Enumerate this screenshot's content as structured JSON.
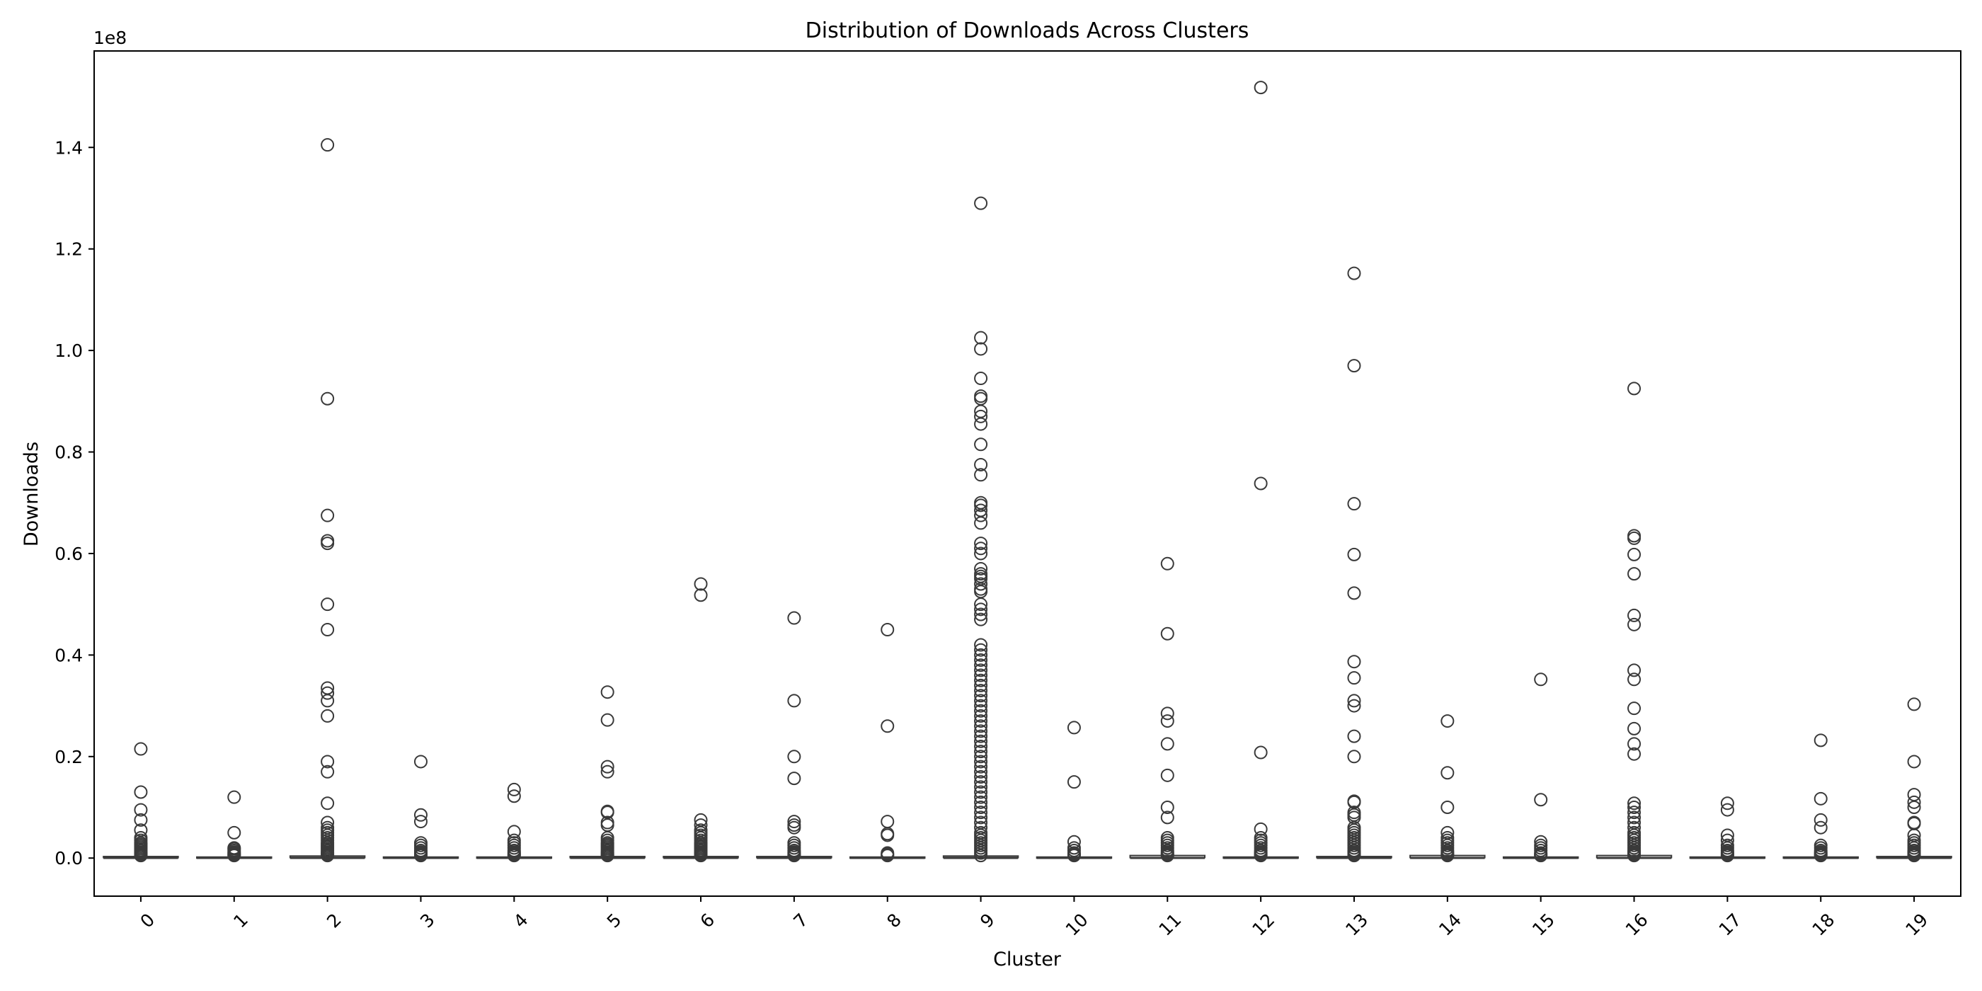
{
  "chart_data": {
    "type": "box",
    "title": "Distribution of Downloads Across Clusters",
    "xlabel": "Cluster",
    "ylabel": "Downloads",
    "y_offset_label": "1e8",
    "categories": [
      "0",
      "1",
      "2",
      "3",
      "4",
      "5",
      "6",
      "7",
      "8",
      "9",
      "10",
      "11",
      "12",
      "13",
      "14",
      "15",
      "16",
      "17",
      "18",
      "19"
    ],
    "ylim": [
      -0.075,
      1.59
    ],
    "yticks": [
      0.0,
      0.2,
      0.4,
      0.6,
      0.8,
      1.0,
      1.2,
      1.4
    ],
    "ytick_labels": [
      "0.0",
      "0.2",
      "0.4",
      "0.6",
      "0.8",
      "1.0",
      "1.2",
      "1.4"
    ],
    "y_unit_multiplier": 100000000,
    "grid": false,
    "legend": "none",
    "box_color": "#3a3a3a",
    "boxes": [
      {
        "cluster": "0",
        "q1": 0.0,
        "median": 0.0,
        "q3": 0.002,
        "outliers": [
          0.215,
          0.13,
          0.095,
          0.075,
          0.055,
          0.04,
          0.035,
          0.03,
          0.027,
          0.024,
          0.021,
          0.018,
          0.015,
          0.012,
          0.01,
          0.008,
          0.006,
          0.005
        ]
      },
      {
        "cluster": "1",
        "q1": 0.0,
        "median": 0.0,
        "q3": 0.001,
        "outliers": [
          0.12,
          0.05,
          0.02,
          0.018,
          0.015,
          0.012,
          0.01,
          0.008,
          0.006,
          0.005
        ]
      },
      {
        "cluster": "2",
        "q1": 0.0,
        "median": 0.0,
        "q3": 0.003,
        "outliers": [
          1.405,
          0.905,
          0.675,
          0.625,
          0.62,
          0.5,
          0.45,
          0.335,
          0.325,
          0.31,
          0.28,
          0.19,
          0.17,
          0.108,
          0.07,
          0.06,
          0.055,
          0.05,
          0.045,
          0.04,
          0.035,
          0.03,
          0.027,
          0.024,
          0.021,
          0.018,
          0.015,
          0.012,
          0.01,
          0.008,
          0.006,
          0.005
        ]
      },
      {
        "cluster": "3",
        "q1": 0.0,
        "median": 0.0,
        "q3": 0.001,
        "outliers": [
          0.19,
          0.085,
          0.072,
          0.03,
          0.025,
          0.02,
          0.015,
          0.012,
          0.01,
          0.008,
          0.006,
          0.005
        ]
      },
      {
        "cluster": "4",
        "q1": 0.0,
        "median": 0.0,
        "q3": 0.001,
        "outliers": [
          0.135,
          0.122,
          0.052,
          0.035,
          0.03,
          0.025,
          0.02,
          0.015,
          0.012,
          0.01,
          0.008,
          0.006,
          0.005
        ]
      },
      {
        "cluster": "5",
        "q1": 0.0,
        "median": 0.0,
        "q3": 0.002,
        "outliers": [
          0.327,
          0.272,
          0.18,
          0.17,
          0.092,
          0.09,
          0.07,
          0.065,
          0.04,
          0.035,
          0.03,
          0.027,
          0.024,
          0.021,
          0.018,
          0.015,
          0.012,
          0.01,
          0.008,
          0.006,
          0.005
        ]
      },
      {
        "cluster": "6",
        "q1": 0.0,
        "median": 0.0,
        "q3": 0.002,
        "outliers": [
          0.54,
          0.518,
          0.075,
          0.065,
          0.055,
          0.05,
          0.045,
          0.04,
          0.035,
          0.03,
          0.027,
          0.024,
          0.021,
          0.018,
          0.015,
          0.012,
          0.01,
          0.008,
          0.006,
          0.005
        ]
      },
      {
        "cluster": "7",
        "q1": 0.0,
        "median": 0.0,
        "q3": 0.002,
        "outliers": [
          0.473,
          0.31,
          0.2,
          0.157,
          0.072,
          0.065,
          0.06,
          0.03,
          0.025,
          0.02,
          0.015,
          0.012,
          0.01,
          0.008,
          0.006,
          0.005
        ]
      },
      {
        "cluster": "8",
        "q1": 0.0,
        "median": 0.0,
        "q3": 0.001,
        "outliers": [
          0.45,
          0.26,
          0.072,
          0.048,
          0.045,
          0.01,
          0.008,
          0.006,
          0.005
        ]
      },
      {
        "cluster": "9",
        "q1": 0.0,
        "median": 0.0,
        "q3": 0.003,
        "outliers": [
          1.29,
          1.025,
          1.003,
          0.945,
          0.91,
          0.905,
          0.88,
          0.87,
          0.855,
          0.815,
          0.775,
          0.755,
          0.7,
          0.695,
          0.685,
          0.675,
          0.66,
          0.62,
          0.61,
          0.6,
          0.57,
          0.56,
          0.555,
          0.55,
          0.54,
          0.53,
          0.525,
          0.5,
          0.49,
          0.48,
          0.47,
          0.42,
          0.41,
          0.4,
          0.39,
          0.38,
          0.37,
          0.36,
          0.35,
          0.34,
          0.33,
          0.32,
          0.31,
          0.3,
          0.29,
          0.28,
          0.27,
          0.26,
          0.25,
          0.24,
          0.23,
          0.22,
          0.21,
          0.2,
          0.19,
          0.18,
          0.17,
          0.16,
          0.15,
          0.14,
          0.13,
          0.12,
          0.11,
          0.1,
          0.09,
          0.08,
          0.07,
          0.06,
          0.05,
          0.045,
          0.04,
          0.035,
          0.03,
          0.025,
          0.02,
          0.015,
          0.01,
          0.005
        ]
      },
      {
        "cluster": "10",
        "q1": 0.0,
        "median": 0.0,
        "q3": 0.001,
        "outliers": [
          0.257,
          0.15,
          0.032,
          0.02,
          0.015,
          0.01,
          0.008,
          0.006,
          0.005
        ]
      },
      {
        "cluster": "11",
        "q1": 0.0,
        "median": 0.0,
        "q3": 0.004,
        "outliers": [
          0.58,
          0.442,
          0.285,
          0.27,
          0.225,
          0.163,
          0.1,
          0.08,
          0.04,
          0.035,
          0.03,
          0.025,
          0.02,
          0.015,
          0.012,
          0.01,
          0.008,
          0.006,
          0.005
        ]
      },
      {
        "cluster": "12",
        "q1": 0.0,
        "median": 0.0,
        "q3": 0.001,
        "outliers": [
          1.518,
          0.738,
          0.208,
          0.057,
          0.04,
          0.035,
          0.03,
          0.025,
          0.02,
          0.015,
          0.012,
          0.01,
          0.008,
          0.006,
          0.005
        ]
      },
      {
        "cluster": "13",
        "q1": 0.0,
        "median": 0.0,
        "q3": 0.002,
        "outliers": [
          1.152,
          0.97,
          0.698,
          0.598,
          0.522,
          0.387,
          0.355,
          0.31,
          0.3,
          0.24,
          0.2,
          0.112,
          0.11,
          0.09,
          0.085,
          0.08,
          0.06,
          0.055,
          0.05,
          0.045,
          0.04,
          0.035,
          0.03,
          0.025,
          0.02,
          0.015,
          0.012,
          0.01,
          0.008,
          0.006,
          0.005
        ]
      },
      {
        "cluster": "14",
        "q1": 0.0,
        "median": 0.0,
        "q3": 0.004,
        "outliers": [
          0.27,
          0.168,
          0.1,
          0.05,
          0.04,
          0.035,
          0.03,
          0.025,
          0.02,
          0.015,
          0.012,
          0.01,
          0.008,
          0.006,
          0.005
        ]
      },
      {
        "cluster": "15",
        "q1": 0.0,
        "median": 0.0,
        "q3": 0.001,
        "outliers": [
          0.352,
          0.115,
          0.032,
          0.025,
          0.02,
          0.015,
          0.01,
          0.008,
          0.006,
          0.005
        ]
      },
      {
        "cluster": "16",
        "q1": 0.0,
        "median": 0.0,
        "q3": 0.004,
        "outliers": [
          0.925,
          0.635,
          0.63,
          0.598,
          0.56,
          0.478,
          0.46,
          0.37,
          0.352,
          0.295,
          0.255,
          0.225,
          0.205,
          0.108,
          0.1,
          0.09,
          0.08,
          0.07,
          0.06,
          0.05,
          0.045,
          0.04,
          0.035,
          0.03,
          0.025,
          0.02,
          0.015,
          0.012,
          0.01,
          0.008,
          0.006,
          0.005
        ]
      },
      {
        "cluster": "17",
        "q1": 0.0,
        "median": 0.0,
        "q3": 0.001,
        "outliers": [
          0.108,
          0.095,
          0.045,
          0.035,
          0.025,
          0.02,
          0.015,
          0.012,
          0.01,
          0.008,
          0.006,
          0.005
        ]
      },
      {
        "cluster": "18",
        "q1": 0.0,
        "median": 0.0,
        "q3": 0.001,
        "outliers": [
          0.232,
          0.117,
          0.075,
          0.06,
          0.025,
          0.02,
          0.015,
          0.012,
          0.01,
          0.008,
          0.006,
          0.005
        ]
      },
      {
        "cluster": "19",
        "q1": 0.0,
        "median": 0.0,
        "q3": 0.002,
        "outliers": [
          0.303,
          0.19,
          0.125,
          0.11,
          0.1,
          0.07,
          0.068,
          0.045,
          0.035,
          0.03,
          0.025,
          0.02,
          0.015,
          0.012,
          0.01,
          0.008,
          0.006,
          0.005
        ]
      }
    ]
  }
}
